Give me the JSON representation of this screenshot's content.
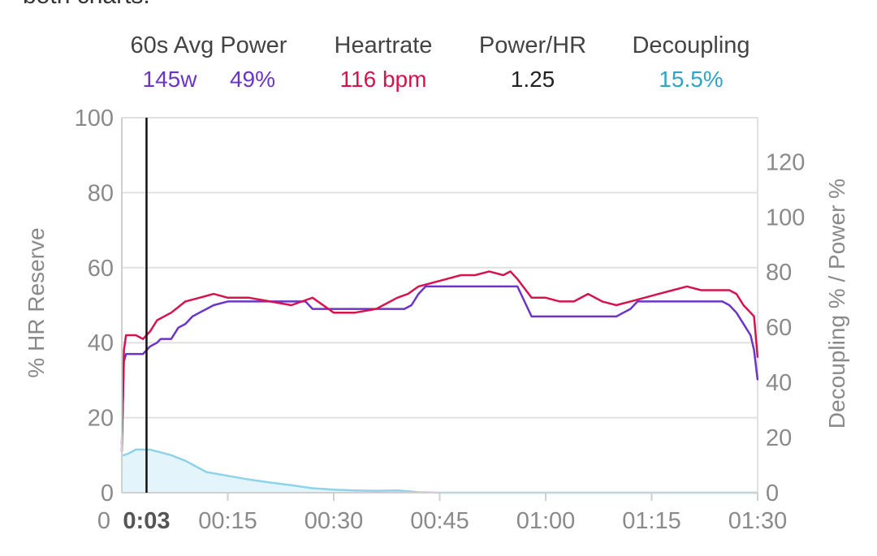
{
  "header": {
    "clipped_text": "both charts."
  },
  "stats": [
    {
      "label": "60s Avg Power",
      "values": [
        {
          "text": "145w",
          "color": "#6a35c8"
        },
        {
          "text": "49%",
          "color": "#6a35c8"
        }
      ]
    },
    {
      "label": "Heartrate",
      "values": [
        {
          "text": "116 bpm",
          "color": "#d5144e"
        }
      ]
    },
    {
      "label": "Power/HR",
      "values": [
        {
          "text": "1.25",
          "color": "#222222"
        }
      ]
    },
    {
      "label": "Decoupling",
      "values": [
        {
          "text": "15.5%",
          "color": "#2fa4c8"
        }
      ]
    }
  ],
  "chart_data": {
    "type": "line",
    "xlabel": "",
    "ylabel_left": "% HR Reserve",
    "ylabel_right": "Decoupling % / Power %",
    "x_unit": "minutes",
    "xlim": [
      0,
      90
    ],
    "ylim_left": [
      0,
      100
    ],
    "ylim_right": [
      0,
      136
    ],
    "left_ticks": [
      "0",
      "20",
      "40",
      "60",
      "80",
      "100"
    ],
    "left_tick_values": [
      0,
      20,
      40,
      60,
      80,
      100
    ],
    "right_ticks": [
      "0",
      "20",
      "40",
      "60",
      "80",
      "100",
      "120"
    ],
    "right_tick_values": [
      0,
      20,
      40,
      60,
      80,
      100,
      120
    ],
    "x_ticks": [
      "0",
      "0:03",
      "00:15",
      "00:30",
      "00:45",
      "01:00",
      "01:15",
      "01:30"
    ],
    "x_tick_values": [
      0,
      3.5,
      15,
      30,
      45,
      60,
      75,
      90
    ],
    "current_x": 3.5,
    "current_label": "0:03",
    "grid": true,
    "series": [
      {
        "axis": "left",
        "color": "#d5144e",
        "x": [
          0,
          0.3,
          0.6,
          1,
          2,
          3,
          4,
          5,
          7,
          9,
          11,
          13,
          15,
          18,
          21,
          24,
          27,
          30,
          33,
          36,
          39,
          40.5,
          42,
          44,
          46,
          48,
          50,
          52,
          54,
          55,
          56,
          58,
          60,
          62,
          64,
          66,
          68,
          70,
          72,
          74,
          76,
          78,
          80,
          82,
          84,
          86,
          87,
          88,
          89,
          89.5,
          90
        ],
        "values": [
          11,
          38,
          42,
          42,
          42,
          41,
          43,
          46,
          48,
          51,
          52,
          53,
          52,
          52,
          51,
          50,
          52,
          48,
          48,
          49,
          52,
          53,
          55,
          56,
          57,
          58,
          58,
          59,
          58,
          59,
          57,
          52,
          52,
          51,
          51,
          53,
          51,
          50,
          51,
          52,
          53,
          54,
          55,
          54,
          54,
          54,
          53,
          50,
          48,
          47,
          36
        ]
      },
      {
        "axis": "left",
        "color": "#6a35c8",
        "x": [
          0,
          0.3,
          0.6,
          1.2,
          3,
          4,
          5,
          5.5,
          7,
          8,
          9,
          10,
          11,
          12,
          13,
          15,
          18,
          21,
          24,
          26,
          27,
          28,
          30,
          33,
          36,
          40,
          41,
          42,
          43,
          44,
          46,
          48,
          52,
          55,
          56,
          57,
          58,
          63,
          65,
          70,
          71,
          72,
          73,
          75,
          80,
          85,
          86,
          87,
          88,
          89,
          89.5,
          90
        ],
        "values": [
          13,
          35,
          37,
          37,
          37,
          39,
          40,
          41,
          41,
          44,
          45,
          47,
          48,
          49,
          50,
          51,
          51,
          51,
          51,
          51,
          49,
          49,
          49,
          49,
          49,
          49,
          50,
          53,
          55,
          55,
          55,
          55,
          55,
          55,
          55,
          51,
          47,
          47,
          47,
          47,
          48,
          49,
          51,
          51,
          51,
          51,
          50,
          48,
          45,
          42,
          38,
          30
        ]
      },
      {
        "axis": "left",
        "color": "#8dd3ea",
        "fill": "#e3f4fb",
        "x": [
          0,
          0.3,
          1,
          2,
          3,
          4,
          5,
          7,
          9,
          10,
          12,
          15,
          18,
          21,
          24,
          27,
          30,
          33,
          36,
          39,
          40.5,
          42,
          45,
          60,
          75,
          90
        ],
        "values": [
          10,
          10,
          10.5,
          11.5,
          11.5,
          11.5,
          11,
          10,
          8.5,
          7.5,
          5.5,
          4.5,
          3.5,
          2.7,
          2,
          1.2,
          0.8,
          0.6,
          0.5,
          0.6,
          0.4,
          0.1,
          0,
          0,
          0,
          0
        ]
      }
    ]
  }
}
